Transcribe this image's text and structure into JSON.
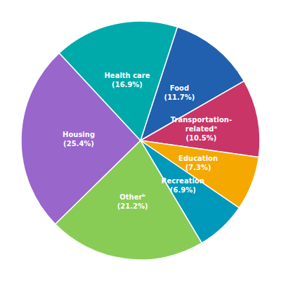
{
  "chart_data": {
    "type": "pie",
    "categories": [
      "Food\n(11.7%)",
      "Transportation-\nrelatedᵃ\n(10.5%)",
      "Education\n(7.3%)",
      "Recreation\n(6.9%)",
      "Otherᵇ\n(21.2%)",
      "Housing\n(25.4%)",
      "Health care\n(16.9%)"
    ],
    "values": [
      11.7,
      10.5,
      7.3,
      6.9,
      21.2,
      25.4,
      16.9
    ],
    "colors": [
      "#2060ae",
      "#c93566",
      "#f5a800",
      "#0099bb",
      "#88cc55",
      "#9966cc",
      "#00aaaa"
    ]
  }
}
